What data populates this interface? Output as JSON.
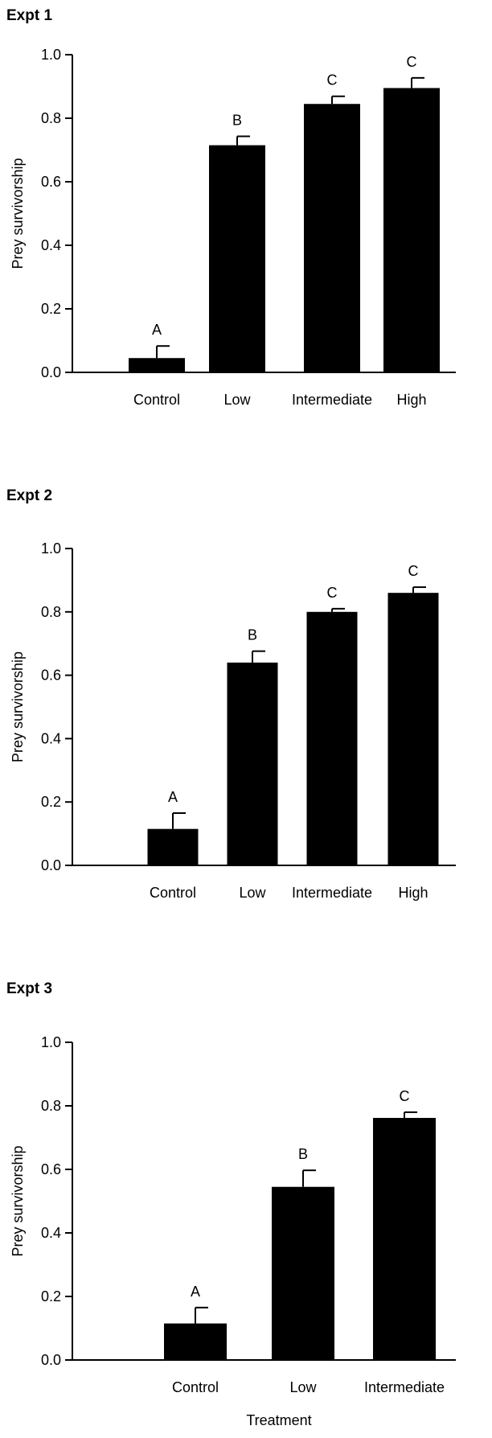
{
  "figure": {
    "xlabel": "Treatment"
  },
  "chart_data": [
    {
      "type": "bar",
      "title": "Expt 1",
      "ylabel": "Prey survivorship",
      "xlabel": "",
      "ylim": [
        0,
        1.0
      ],
      "yticks": [
        "0.0",
        "0.2",
        "0.4",
        "0.6",
        "0.8",
        "1.0"
      ],
      "categories": [
        "Control",
        "Low",
        "Intermediate",
        "High"
      ],
      "values": [
        0.045,
        0.715,
        0.845,
        0.895
      ],
      "errors": [
        0.038,
        0.028,
        0.024,
        0.032
      ],
      "letters": [
        "A",
        "B",
        "C",
        "C"
      ],
      "color": "#000000",
      "grid": false
    },
    {
      "type": "bar",
      "title": "Expt 2",
      "ylabel": "Prey survivorship",
      "xlabel": "",
      "ylim": [
        0,
        1.0
      ],
      "yticks": [
        "0.0",
        "0.2",
        "0.4",
        "0.6",
        "0.8",
        "1.0"
      ],
      "categories": [
        "Control",
        "Low",
        "Intermediate",
        "High"
      ],
      "values": [
        0.115,
        0.64,
        0.8,
        0.86
      ],
      "errors": [
        0.05,
        0.036,
        0.01,
        0.018
      ],
      "letters": [
        "A",
        "B",
        "C",
        "C"
      ],
      "color": "#000000",
      "grid": false
    },
    {
      "type": "bar",
      "title": "Expt 3",
      "ylabel": "Prey survivorship",
      "xlabel": "Treatment",
      "ylim": [
        0,
        1.0
      ],
      "yticks": [
        "0.0",
        "0.2",
        "0.4",
        "0.6",
        "0.8",
        "1.0"
      ],
      "categories": [
        "Control",
        "Low",
        "Intermediate"
      ],
      "values": [
        0.115,
        0.545,
        0.762
      ],
      "errors": [
        0.05,
        0.052,
        0.018
      ],
      "letters": [
        "A",
        "B",
        "C"
      ],
      "color": "#000000",
      "grid": false
    }
  ]
}
